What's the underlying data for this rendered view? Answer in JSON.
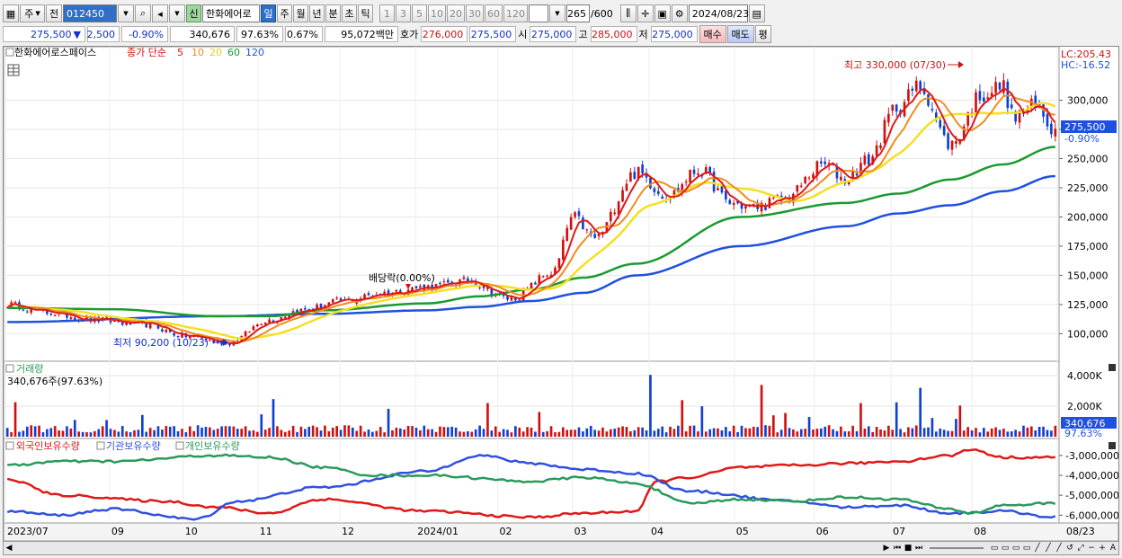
{
  "toolbar": {
    "market": "주",
    "type": "전",
    "code": "012450",
    "new_badge": "신",
    "name": "한화에어로",
    "periods": [
      "일",
      "주",
      "월",
      "년",
      "분",
      "초",
      "틱"
    ],
    "active_period": "일",
    "intervals": [
      "1",
      "3",
      "5",
      "10",
      "20",
      "30",
      "60",
      "120"
    ],
    "count": "265",
    "total": "/600",
    "date": "2024/08/23"
  },
  "quote": {
    "price": "275,500",
    "change_arrow": "▼",
    "change": "2,500",
    "change_pct": "-0.90%",
    "volume": "340,676",
    "vol_ratio": "97.63%",
    "turnover": "0.67%",
    "amount": "95,072백만",
    "hoga_label": "호가",
    "ask": "276,000",
    "bid": "275,500",
    "open_label": "시",
    "open": "275,000",
    "high_label": "고",
    "high": "285,000",
    "low_label": "저",
    "low": "275,000",
    "buy": "매수",
    "sell": "매도",
    "eval": "평"
  },
  "price_panel": {
    "stock_name": "한화에어로스페이스",
    "ma_label": "종가 단순",
    "ma_periods": [
      "5",
      "10",
      "20",
      "60",
      "120"
    ],
    "lc": "LC:205.43",
    "hc": "HC:-16.52",
    "last_price": "275,500",
    "last_pct": "-0.90%",
    "max_label": "최고 330,000 (07/30)",
    "min_label": "최저 90,200 (10/23)",
    "dividend_label": "배당락(0.00%)"
  },
  "volume_panel": {
    "title": "거래량",
    "info": "340,676주(97.63%)",
    "last": "340,676",
    "last_pct": "97.63%"
  },
  "holding_panel": {
    "items": [
      "외국인보유수량",
      "기관보유수량",
      "개인보유수량"
    ]
  },
  "colors": {
    "ma5": "#e01818",
    "ma10": "#f08c20",
    "ma20": "#f4e020",
    "ma60": "#1a9a30",
    "ma120": "#2050e0",
    "up": "#d01010",
    "down": "#1040d0",
    "foreign": "#e01818",
    "institution": "#3050e0",
    "individual": "#2a9a5a"
  },
  "chart_data": {
    "type": "line",
    "title": "한화에어로스페이스",
    "x_ticks": [
      "2023/07",
      "09",
      "10",
      "11",
      "12",
      "2024/01",
      "02",
      "03",
      "04",
      "05",
      "06",
      "07",
      "08",
      "08/23"
    ],
    "y_ticks_price": [
      "300,000",
      "275,000",
      "250,000",
      "225,000",
      "200,000",
      "175,000",
      "150,000",
      "125,000",
      "100,000"
    ],
    "ylim_price": [
      78000,
      335000
    ],
    "y_ticks_volume": [
      "4,000K",
      "2,000K"
    ],
    "y_ticks_holding": [
      "-3,000,000",
      "-4,000,000",
      "-5,000,000",
      "-6,000,000"
    ],
    "close_keypoints": {
      "t": [
        0,
        0.04,
        0.08,
        0.13,
        0.17,
        0.21,
        0.25,
        0.28,
        0.32,
        0.36,
        0.4,
        0.44,
        0.48,
        0.52,
        0.54,
        0.56,
        0.6,
        0.63,
        0.66,
        0.69,
        0.71,
        0.74,
        0.78,
        0.8,
        0.82,
        0.85,
        0.87,
        0.9,
        0.93,
        0.95,
        0.96,
        0.98,
        1.0
      ],
      "v": [
        125000,
        118000,
        112000,
        108000,
        98000,
        92000,
        112000,
        120000,
        128000,
        135000,
        140000,
        145000,
        130000,
        152000,
        200000,
        182000,
        238000,
        218000,
        240000,
        212000,
        208000,
        215000,
        245000,
        232000,
        248000,
        295000,
        312000,
        262000,
        305000,
        312000,
        285000,
        295000,
        275500
      ]
    },
    "ma60_keypoints": {
      "t": [
        0,
        0.1,
        0.2,
        0.25,
        0.3,
        0.4,
        0.45,
        0.5,
        0.55,
        0.6,
        0.7,
        0.8,
        0.85,
        0.9,
        0.95,
        1.0
      ],
      "v": [
        122000,
        121000,
        115000,
        115000,
        120000,
        126000,
        132000,
        138000,
        148000,
        160000,
        200000,
        212000,
        220000,
        232000,
        245000,
        260000
      ]
    },
    "ma120_keypoints": {
      "t": [
        0,
        0.2,
        0.3,
        0.4,
        0.45,
        0.5,
        0.55,
        0.6,
        0.7,
        0.8,
        0.85,
        0.9,
        0.95,
        1.0
      ],
      "v": [
        110000,
        115000,
        117000,
        120000,
        123000,
        128000,
        135000,
        150000,
        175000,
        192000,
        203000,
        210000,
        222000,
        235000
      ]
    },
    "holding_series": [
      {
        "name": "외국인보유수량",
        "t": [
          0,
          0.05,
          0.15,
          0.2,
          0.25,
          0.3,
          0.4,
          0.5,
          0.55,
          0.6,
          0.62,
          0.65,
          0.7,
          0.75,
          0.8,
          0.85,
          0.9,
          0.92,
          0.95,
          1.0
        ],
        "v": [
          -4200000,
          -5000000,
          -5300000,
          -5600000,
          -5900000,
          -5200000,
          -5800000,
          -6100000,
          -5900000,
          -5800000,
          -4300000,
          -4100000,
          -3600000,
          -3500000,
          -3400000,
          -3300000,
          -3000000,
          -2700000,
          -3100000,
          -3100000
        ]
      },
      {
        "name": "기관보유수량",
        "t": [
          0,
          0.05,
          0.1,
          0.18,
          0.22,
          0.3,
          0.4,
          0.45,
          0.5,
          0.55,
          0.6,
          0.65,
          0.75,
          0.8,
          0.85,
          0.9,
          0.95,
          1.0
        ],
        "v": [
          -5800000,
          -6000000,
          -5700000,
          -6200000,
          -5300000,
          -4600000,
          -3800000,
          -3000000,
          -3400000,
          -3700000,
          -3900000,
          -4800000,
          -5300000,
          -5600000,
          -5500000,
          -5900000,
          -5800000,
          -6100000
        ]
      },
      {
        "name": "개인보유수량",
        "t": [
          0,
          0.05,
          0.1,
          0.2,
          0.25,
          0.3,
          0.35,
          0.4,
          0.5,
          0.55,
          0.6,
          0.65,
          0.7,
          0.75,
          0.8,
          0.85,
          0.9,
          0.92,
          0.95,
          1.0
        ],
        "v": [
          -3500000,
          -3300000,
          -3300000,
          -3000000,
          -3100000,
          -3600000,
          -4000000,
          -4000000,
          -4300000,
          -4100000,
          -4400000,
          -5400000,
          -5200000,
          -5300000,
          -5100000,
          -5200000,
          -5700000,
          -5900000,
          -5500000,
          -5400000
        ]
      }
    ]
  }
}
